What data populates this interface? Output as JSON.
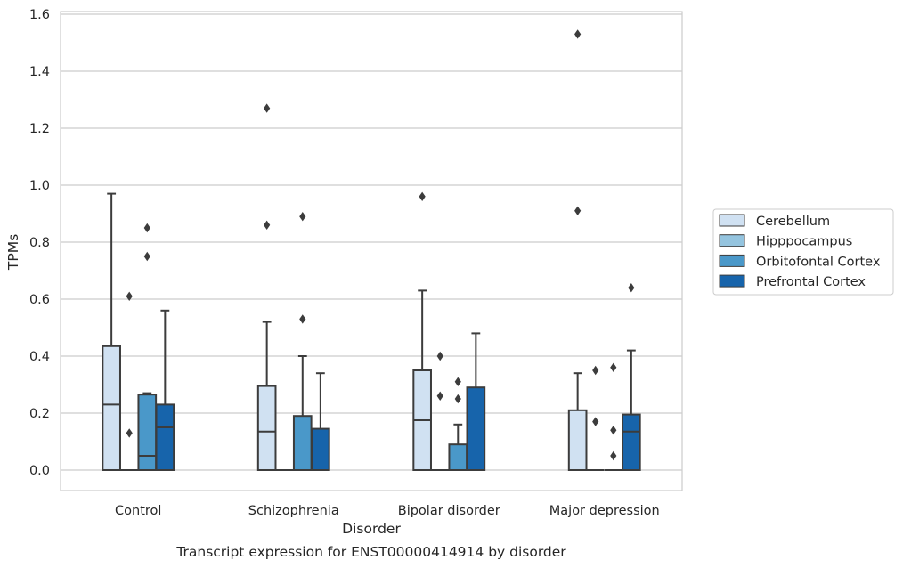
{
  "chart_data": {
    "type": "boxplot",
    "title": "",
    "caption": "Transcript expression for ENST00000414914 by disorder",
    "xlabel": "Disorder",
    "ylabel": "TPMs",
    "ylim": [
      -0.07,
      1.61
    ],
    "yticks": [
      0.0,
      0.2,
      0.4,
      0.6,
      0.8,
      1.0,
      1.2,
      1.4,
      1.6
    ],
    "ytick_labels": [
      "0.0",
      "0.2",
      "0.4",
      "0.6",
      "0.8",
      "1.0",
      "1.2",
      "1.4",
      "1.6"
    ],
    "grid": true,
    "legend_position": "right",
    "categories": [
      "Control",
      "Schizophrenia",
      "Bipolar disorder",
      "Major depression"
    ],
    "series": [
      {
        "name": "Cerebellum",
        "color": "#d0e1f2",
        "boxes": [
          {
            "q1": 0.0,
            "median": 0.23,
            "q3": 0.435,
            "whisker_low": 0.0,
            "whisker_high": 0.97,
            "outliers": []
          },
          {
            "q1": 0.0,
            "median": 0.135,
            "q3": 0.295,
            "whisker_low": 0.0,
            "whisker_high": 0.52,
            "outliers": [
              1.27,
              0.86
            ]
          },
          {
            "q1": 0.0,
            "median": 0.175,
            "q3": 0.35,
            "whisker_low": 0.0,
            "whisker_high": 0.63,
            "outliers": [
              0.96
            ]
          },
          {
            "q1": 0.0,
            "median": 0.0,
            "q3": 0.21,
            "whisker_low": 0.0,
            "whisker_high": 0.34,
            "outliers": [
              1.53,
              0.91
            ]
          }
        ]
      },
      {
        "name": "Hipppocampus",
        "color": "#94c4df",
        "boxes": [
          {
            "q1": 0.0,
            "median": 0.0,
            "q3": 0.0,
            "whisker_low": 0.0,
            "whisker_high": 0.0,
            "outliers": [
              0.61,
              0.13
            ]
          },
          {
            "q1": 0.0,
            "median": 0.0,
            "q3": 0.0,
            "whisker_low": 0.0,
            "whisker_high": 0.0,
            "outliers": []
          },
          {
            "q1": 0.0,
            "median": 0.0,
            "q3": 0.0,
            "whisker_low": 0.0,
            "whisker_high": 0.0,
            "outliers": [
              0.4,
              0.26
            ]
          },
          {
            "q1": 0.0,
            "median": 0.0,
            "q3": 0.0,
            "whisker_low": 0.0,
            "whisker_high": 0.0,
            "outliers": [
              0.35,
              0.17
            ]
          }
        ]
      },
      {
        "name": "Orbitofontal Cortex",
        "color": "#4a98c9",
        "boxes": [
          {
            "q1": 0.0,
            "median": 0.05,
            "q3": 0.265,
            "whisker_low": 0.0,
            "whisker_high": 0.27,
            "outliers": [
              0.85,
              0.75
            ]
          },
          {
            "q1": 0.0,
            "median": 0.0,
            "q3": 0.19,
            "whisker_low": 0.0,
            "whisker_high": 0.4,
            "outliers": [
              0.89,
              0.53
            ]
          },
          {
            "q1": 0.0,
            "median": 0.0,
            "q3": 0.09,
            "whisker_low": 0.0,
            "whisker_high": 0.16,
            "outliers": [
              0.31,
              0.25
            ]
          },
          {
            "q1": 0.0,
            "median": 0.0,
            "q3": 0.0,
            "whisker_low": 0.0,
            "whisker_high": 0.0,
            "outliers": [
              0.36,
              0.14,
              0.05
            ]
          }
        ]
      },
      {
        "name": "Prefrontal Cortex",
        "color": "#1764ab",
        "boxes": [
          {
            "q1": 0.0,
            "median": 0.15,
            "q3": 0.23,
            "whisker_low": 0.0,
            "whisker_high": 0.56,
            "outliers": []
          },
          {
            "q1": 0.0,
            "median": 0.0,
            "q3": 0.145,
            "whisker_low": 0.0,
            "whisker_high": 0.34,
            "outliers": []
          },
          {
            "q1": 0.0,
            "median": 0.0,
            "q3": 0.29,
            "whisker_low": 0.0,
            "whisker_high": 0.48,
            "outliers": []
          },
          {
            "q1": 0.0,
            "median": 0.135,
            "q3": 0.195,
            "whisker_low": 0.0,
            "whisker_high": 0.42,
            "outliers": [
              0.64
            ]
          }
        ]
      }
    ]
  }
}
